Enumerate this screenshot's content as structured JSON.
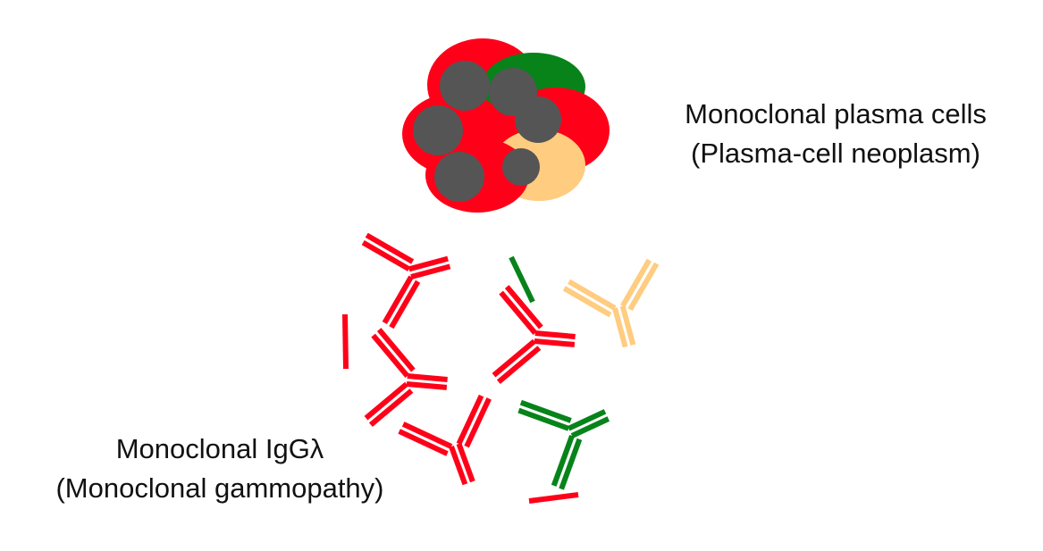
{
  "labels": {
    "plasma_cells": {
      "line1": "Monoclonal plasma cells",
      "line2": "(Plasma-cell neoplasm)"
    },
    "immunoglobulin": {
      "line1": "Monoclonal IgGλ",
      "line2": "(Monoclonal gammopathy)"
    }
  },
  "colors": {
    "red": "#ff0019",
    "green": "#07831a",
    "orange": "#ffcc80",
    "nucleus": "#555555",
    "text": "#111111"
  }
}
